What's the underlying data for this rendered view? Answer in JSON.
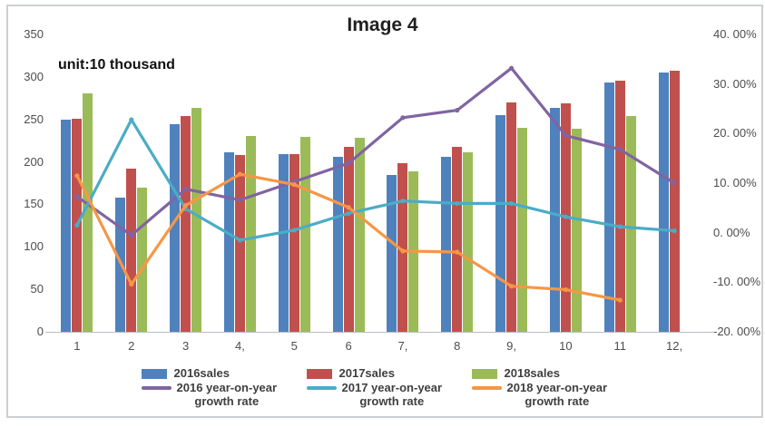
{
  "chart_data": {
    "type": "bar",
    "subtype": "combo-bar-line-dual-axis",
    "title": "Image 4",
    "unit_label": "unit:10 thousand",
    "categories": [
      "1",
      "2",
      "3",
      "4,",
      "5",
      "6",
      "7,",
      "8",
      "9,",
      "10",
      "11",
      "12,"
    ],
    "bar_series": [
      {
        "name": "2016sales",
        "color": "#4f81bd",
        "axis": "left",
        "values": [
          250,
          158,
          244,
          211,
          209,
          206,
          185,
          206,
          255,
          264,
          293,
          305
        ]
      },
      {
        "name": "2017sales",
        "color": "#c0504d",
        "axis": "left",
        "values": [
          251,
          192,
          254,
          208,
          209,
          218,
          198,
          218,
          270,
          269,
          296,
          307
        ]
      },
      {
        "name": "2018sales",
        "color": "#9bbb59",
        "axis": "left",
        "values": [
          281,
          170,
          264,
          231,
          229,
          228,
          189,
          211,
          240,
          239,
          254,
          null
        ]
      }
    ],
    "line_series": [
      {
        "name": "2016 year-on-year growth rate",
        "color": "#8064a2",
        "axis": "right",
        "values": [
          7.3,
          -0.5,
          8.8,
          6.6,
          10.3,
          14,
          23.2,
          24.7,
          33.2,
          19.6,
          16.8,
          10
        ]
      },
      {
        "name": "2017 year-on-year growth rate",
        "color": "#4bacc6",
        "axis": "right",
        "values": [
          1.5,
          22.8,
          4.8,
          -1.5,
          0.5,
          3.9,
          6.4,
          5.9,
          5.9,
          3.2,
          1.2,
          0.4
        ]
      },
      {
        "name": "2018 year-on-year growth rate",
        "color": "#f79646",
        "axis": "right",
        "values": [
          11.5,
          -10.4,
          5.5,
          11.8,
          9.7,
          5.1,
          -3.7,
          -3.9,
          -10.8,
          -11.5,
          -13.6,
          null
        ]
      }
    ],
    "left_axis": {
      "min": 0,
      "max": 350,
      "ticks": [
        "0",
        "50",
        "100",
        "150",
        "200",
        "250",
        "300",
        "350"
      ]
    },
    "right_axis": {
      "min": -20,
      "max": 40,
      "ticks": [
        "-20. 00%",
        "-10. 00%",
        "0. 00%",
        "10. 00%",
        "20. 00%",
        "30. 00%",
        "40. 00%"
      ]
    },
    "legend_position": "bottom",
    "grid": "off"
  }
}
